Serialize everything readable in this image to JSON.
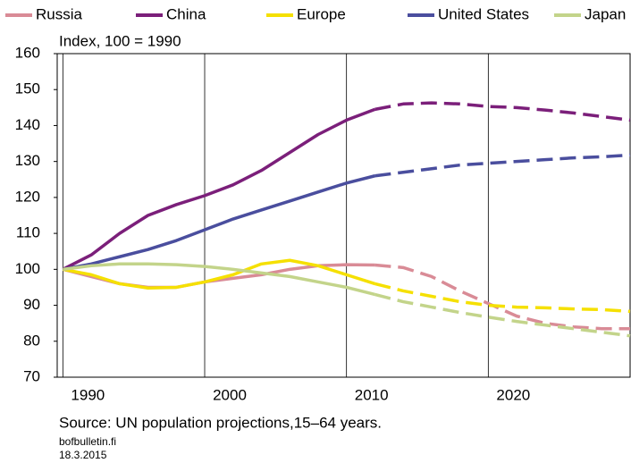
{
  "chart_data": {
    "type": "line",
    "axis_label": "Index, 100 = 1990",
    "source": "Source: UN population projections,15–64 years.",
    "site": "bofbulletin.fi",
    "date": "18.3.2015",
    "x": [
      1990,
      1992,
      1994,
      1996,
      1998,
      2000,
      2002,
      2004,
      2006,
      2008,
      2010,
      2012,
      2014,
      2016,
      2018,
      2020,
      2022,
      2024,
      2026,
      2028,
      2030
    ],
    "dashed_from": 2013,
    "series": [
      {
        "name": "Russia",
        "color": "#d98b96",
        "values": [
          100,
          98,
          96,
          95,
          95,
          96.5,
          97.5,
          98.5,
          100,
          101,
          101.3,
          101.2,
          100.5,
          98,
          94,
          90.5,
          87,
          85,
          84,
          83.5,
          83.5
        ]
      },
      {
        "name": "China",
        "color": "#7b1f7a",
        "values": [
          100,
          104,
          110,
          115,
          118,
          120.5,
          123.5,
          127.5,
          132.5,
          137.5,
          141.5,
          144.5,
          146,
          146.3,
          146,
          145.3,
          145,
          144.3,
          143.5,
          142.5,
          141.5
        ]
      },
      {
        "name": "Europe",
        "color": "#f5e000",
        "values": [
          100,
          98.5,
          96,
          94.8,
          95,
          96.5,
          98.5,
          101.5,
          102.5,
          101,
          98.5,
          96,
          94,
          92.5,
          91,
          90,
          89.5,
          89.3,
          89,
          88.8,
          88.3
        ]
      },
      {
        "name": "United States",
        "color": "#4a4e9e",
        "values": [
          100,
          101.5,
          103.5,
          105.5,
          108,
          111,
          114,
          116.5,
          119,
          121.5,
          124,
          126,
          127,
          128,
          129,
          129.5,
          130,
          130.5,
          131,
          131.3,
          131.8
        ]
      },
      {
        "name": "Japan",
        "color": "#c3d48a",
        "values": [
          100,
          101,
          101.5,
          101.5,
          101.3,
          100.8,
          100,
          99,
          98,
          96.5,
          95,
          93,
          91,
          89.5,
          88,
          86.7,
          85.5,
          84.5,
          83.5,
          82.5,
          81.5
        ]
      }
    ],
    "xlim": [
      1989.6,
      2030
    ],
    "xticks": [
      1990,
      2000,
      2010,
      2020
    ],
    "ylim": [
      70,
      160
    ],
    "yticks": [
      70,
      80,
      90,
      100,
      110,
      120,
      130,
      140,
      150,
      160
    ],
    "grid": "x"
  }
}
